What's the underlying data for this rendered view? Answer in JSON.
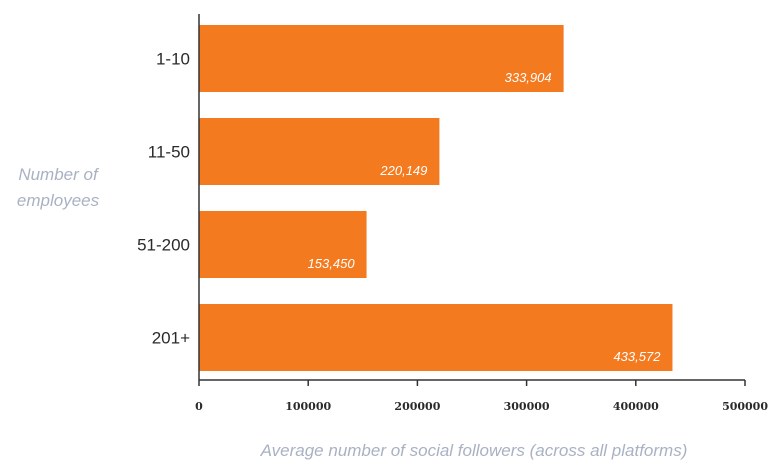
{
  "chart_data": {
    "type": "bar",
    "orientation": "horizontal",
    "categories": [
      "1-10",
      "11-50",
      "51-200",
      "201+"
    ],
    "values": [
      333904,
      220149,
      153450,
      433572
    ],
    "value_labels": [
      "333,904",
      "220,149",
      "153,450",
      "433,572"
    ],
    "xlim": [
      0,
      500000
    ],
    "x_ticks": [
      "0",
      "100000",
      "200000",
      "300000",
      "400000",
      "500000"
    ],
    "xlabel": "Average number of social followers (across all platforms)",
    "ylabel": [
      "Number of",
      "employees"
    ],
    "title": "",
    "grid": false,
    "legend": "none",
    "colors": {
      "bar": "#f47a20",
      "axis_title": "#a9b2c3",
      "text": "#2a2a2a",
      "value_label": "#ffffff"
    }
  }
}
